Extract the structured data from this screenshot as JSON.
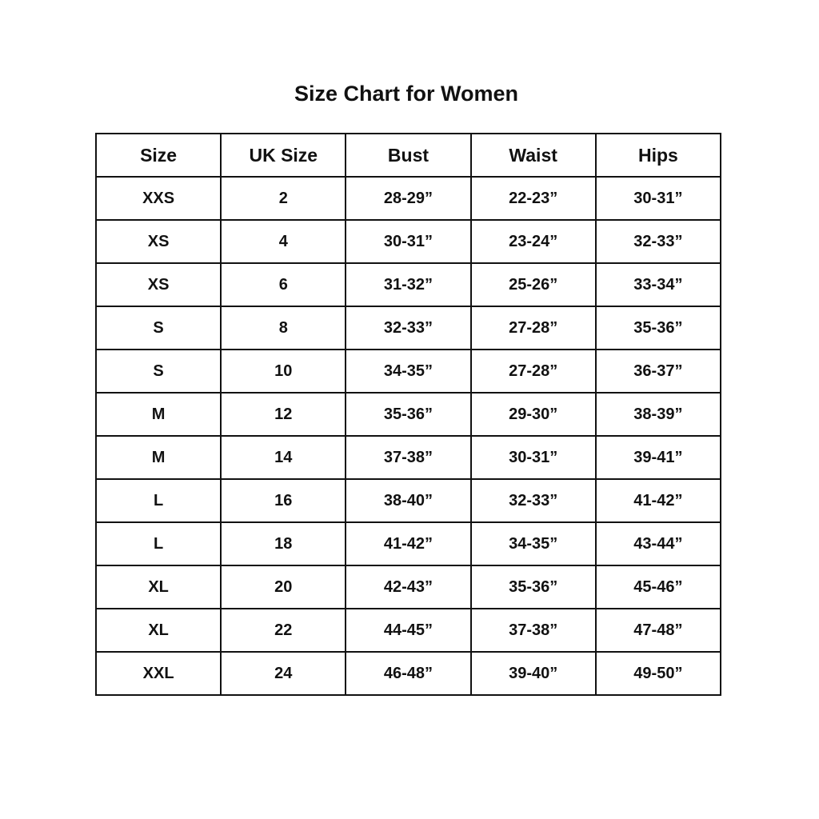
{
  "title": "Size Chart for Women",
  "columns": [
    "Size",
    "UK Size",
    "Bust",
    "Waist",
    "Hips"
  ],
  "rows": [
    [
      "XXS",
      "2",
      "28-29”",
      "22-23”",
      "30-31”"
    ],
    [
      "XS",
      "4",
      "30-31”",
      "23-24”",
      "32-33”"
    ],
    [
      "XS",
      "6",
      "31-32”",
      "25-26”",
      "33-34”"
    ],
    [
      "S",
      "8",
      "32-33”",
      "27-28”",
      "35-36”"
    ],
    [
      "S",
      "10",
      "34-35”",
      "27-28”",
      "36-37”"
    ],
    [
      "M",
      "12",
      "35-36”",
      "29-30”",
      "38-39”"
    ],
    [
      "M",
      "14",
      "37-38”",
      "30-31”",
      "39-41”"
    ],
    [
      "L",
      "16",
      "38-40”",
      "32-33”",
      "41-42”"
    ],
    [
      "L",
      "18",
      "41-42”",
      "34-35”",
      "43-44”"
    ],
    [
      "XL",
      "20",
      "42-43”",
      "35-36”",
      "45-46”"
    ],
    [
      "XL",
      "22",
      "44-45”",
      "37-38”",
      "47-48”"
    ],
    [
      "XXL",
      "24",
      "46-48”",
      "39-40”",
      "49-50”"
    ]
  ]
}
